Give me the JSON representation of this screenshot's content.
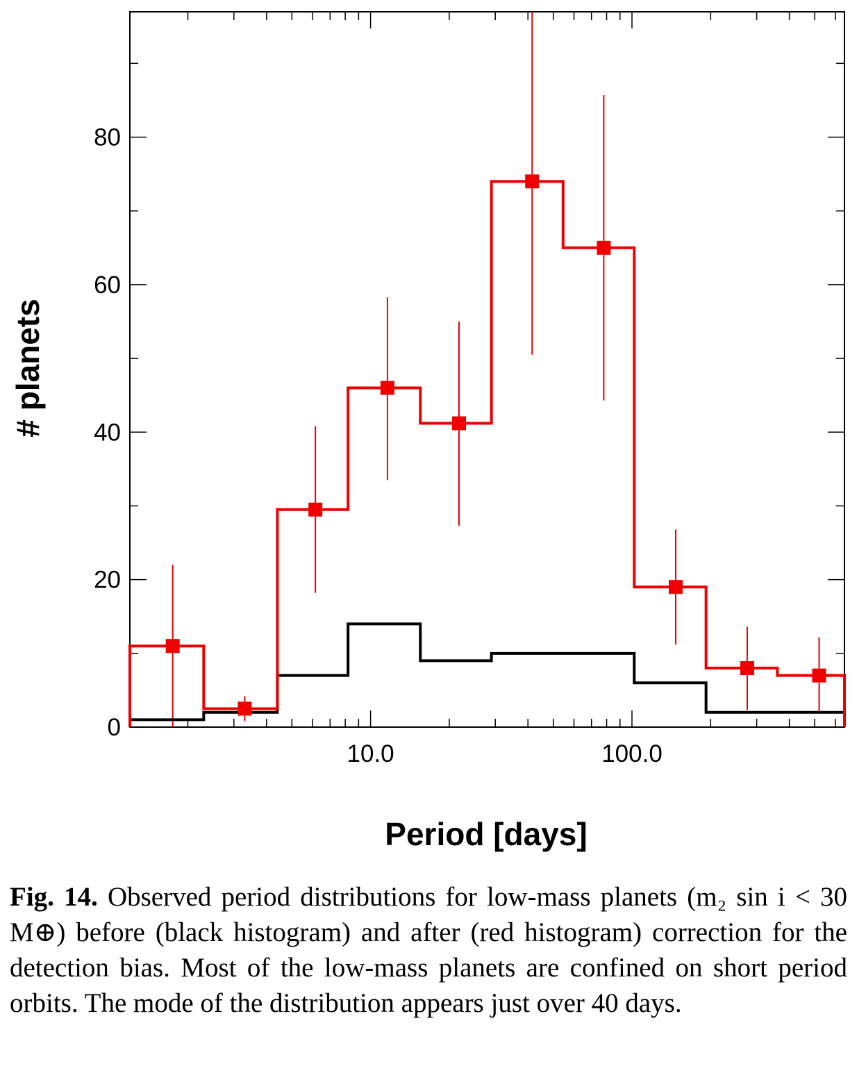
{
  "chart_data": {
    "type": "histogram",
    "x_scale": "log",
    "xlim": [
      1.2,
      650
    ],
    "ylim": [
      0,
      97
    ],
    "xlabel": "Period   [days]",
    "ylabel": "# planets",
    "x_tick_labels": [
      {
        "value": 10,
        "label": "10.0"
      },
      {
        "value": 100,
        "label": "100.0"
      }
    ],
    "y_tick_labels": [
      {
        "value": 0,
        "label": "0"
      },
      {
        "value": 20,
        "label": "20"
      },
      {
        "value": 40,
        "label": "40"
      },
      {
        "value": 60,
        "label": "60"
      },
      {
        "value": 80,
        "label": "80"
      }
    ],
    "bin_edges": [
      1.2,
      2.3,
      4.4,
      8.2,
      15.5,
      29.0,
      54.5,
      102,
      192,
      360,
      650
    ],
    "series": [
      {
        "key": "observed",
        "color": "#000000",
        "values": [
          1,
          2,
          7,
          14,
          9,
          10,
          10,
          6,
          2,
          2
        ]
      },
      {
        "key": "corrected",
        "color": "#ee0000",
        "values": [
          11,
          2.5,
          29.5,
          46,
          41.2,
          74,
          65,
          19,
          8,
          7
        ],
        "points": [
          {
            "x": 1.75,
            "y": 11,
            "lo": 0,
            "hi": 22
          },
          {
            "x": 3.3,
            "y": 2.5,
            "lo": 0.8,
            "hi": 4.2
          },
          {
            "x": 6.15,
            "y": 29.5,
            "lo": 18.2,
            "hi": 40.8
          },
          {
            "x": 11.6,
            "y": 46,
            "lo": 33.5,
            "hi": 58.3
          },
          {
            "x": 21.8,
            "y": 41.2,
            "lo": 27.3,
            "hi": 55
          },
          {
            "x": 41.5,
            "y": 74,
            "lo": 50.5,
            "hi": 97
          },
          {
            "x": 78,
            "y": 65,
            "lo": 44.3,
            "hi": 85.7
          },
          {
            "x": 147,
            "y": 19,
            "lo": 11.2,
            "hi": 26.8
          },
          {
            "x": 276,
            "y": 8,
            "lo": 2.3,
            "hi": 13.6
          },
          {
            "x": 520,
            "y": 7,
            "lo": 2,
            "hi": 12.2
          }
        ]
      }
    ],
    "grid": false
  },
  "caption": {
    "label": "Fig. 14.",
    "text": "Observed period distributions for low-mass planets (m₂ sin i < 30 M⊕) before (black histogram) and after (red histogram) correction for the detection bias. Most of the low-mass planets are confined on short period orbits. The mode of the distribution appears just over 40 days."
  }
}
